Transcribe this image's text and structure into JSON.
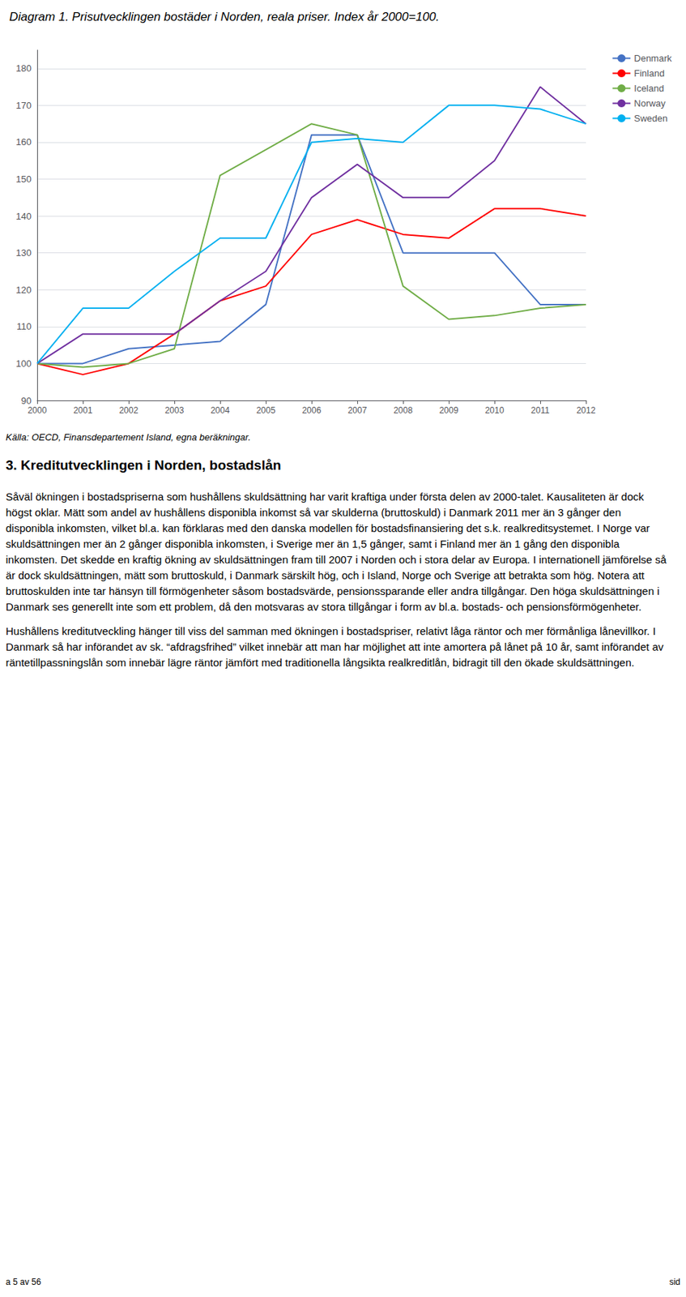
{
  "chart_data": {
    "type": "line",
    "title": "Diagram 1. Prisutvecklingen bostäder i Norden, reala priser. Index år 2000=100.",
    "x": [
      2000,
      2001,
      2002,
      2003,
      2004,
      2005,
      2006,
      2007,
      2008,
      2009,
      2010,
      2011,
      2012
    ],
    "series": [
      {
        "name": "Denmark",
        "color": "#4472C4",
        "values": [
          100,
          100,
          104,
          105,
          106,
          116,
          162,
          162,
          130,
          130,
          130,
          116,
          116
        ]
      },
      {
        "name": "Finland",
        "color": "#FF0000",
        "values": [
          100,
          97,
          100,
          108,
          117,
          121,
          135,
          139,
          135,
          134,
          142,
          142,
          140
        ]
      },
      {
        "name": "Iceland",
        "color": "#70AD47",
        "values": [
          100,
          99,
          100,
          104,
          151,
          158,
          165,
          162,
          121,
          112,
          113,
          115,
          116
        ]
      },
      {
        "name": "Norway",
        "color": "#7030A0",
        "values": [
          100,
          108,
          108,
          108,
          117,
          125,
          145,
          154,
          145,
          145,
          155,
          175,
          165
        ]
      },
      {
        "name": "Sweden",
        "color": "#00B0F0",
        "values": [
          100,
          115,
          115,
          125,
          134,
          134,
          160,
          161,
          160,
          170,
          170,
          169,
          165
        ]
      }
    ],
    "xlim": [
      2000,
      2012
    ],
    "xticks": [
      2000,
      2001,
      2002,
      2003,
      2004,
      2005,
      2006,
      2007,
      2008,
      2009,
      2010,
      2011,
      2012
    ],
    "ylim": [
      90,
      185
    ],
    "yticks": [
      90,
      100,
      110,
      120,
      130,
      140,
      150,
      160,
      170,
      180
    ],
    "grid": true,
    "legend": "right",
    "source": "Källa: OECD, Finansdepartement Island, egna beräkningar.",
    "section_title": "3. Kreditutvecklingen i Norden, bostadslån",
    "body": [
      "Såväl ökningen i bostadspriserna som hushållens skuldsättning har varit kraftiga under första delen av 2000-talet. Kausaliteten är dock högst oklar. Mätt som andel av hushållens disponibla inkomst så var skulderna (bruttoskuld) i Danmark 2011 mer än 3 gånger den disponibla inkomsten, vilket bl.a. kan förklaras med den danska modellen för bostadsfinansiering det s.k. realkreditsystemet. I Norge var skuldsättningen mer än 2 gånger disponibla inkomsten, i Sverige mer än 1,5 gånger, samt i Finland mer än 1 gång den disponibla inkomsten. Det skedde en kraftig ökning av skuldsättningen fram till 2007 i Norden och i stora delar av Europa. I internationell jämförelse så är dock skuldsättningen, mätt som bruttoskuld, i Danmark särskilt hög, och i Island, Norge och Sverige att betrakta som hög.  Notera att bruttoskulden inte tar hänsyn till förmögenheter såsom bostadsvärde, pensionssparande eller andra tillgångar. Den höga skuldsättningen i Danmark ses generellt inte som ett problem, då den motsvaras av stora tillgångar i form av bl.a. bostads- och pensionsförmögenheter.",
      "Hushållens kreditutveckling hänger till viss del samman med ökningen i bostadspriser, relativt låga räntor och mer förmånliga lånevillkor. I Danmark så har införandet av sk. “afdragsfrihed” vilket innebär att man har möjlighet att inte amortera på lånet på 10 år, samt införandet av räntetillpassningslån som innebär lägre räntor jämfört med traditionella långsikta realkreditlån, bidragit till den ökade skuldsättningen."
    ],
    "footer_left": "a 5 av 56",
    "footer_right": "sid"
  }
}
